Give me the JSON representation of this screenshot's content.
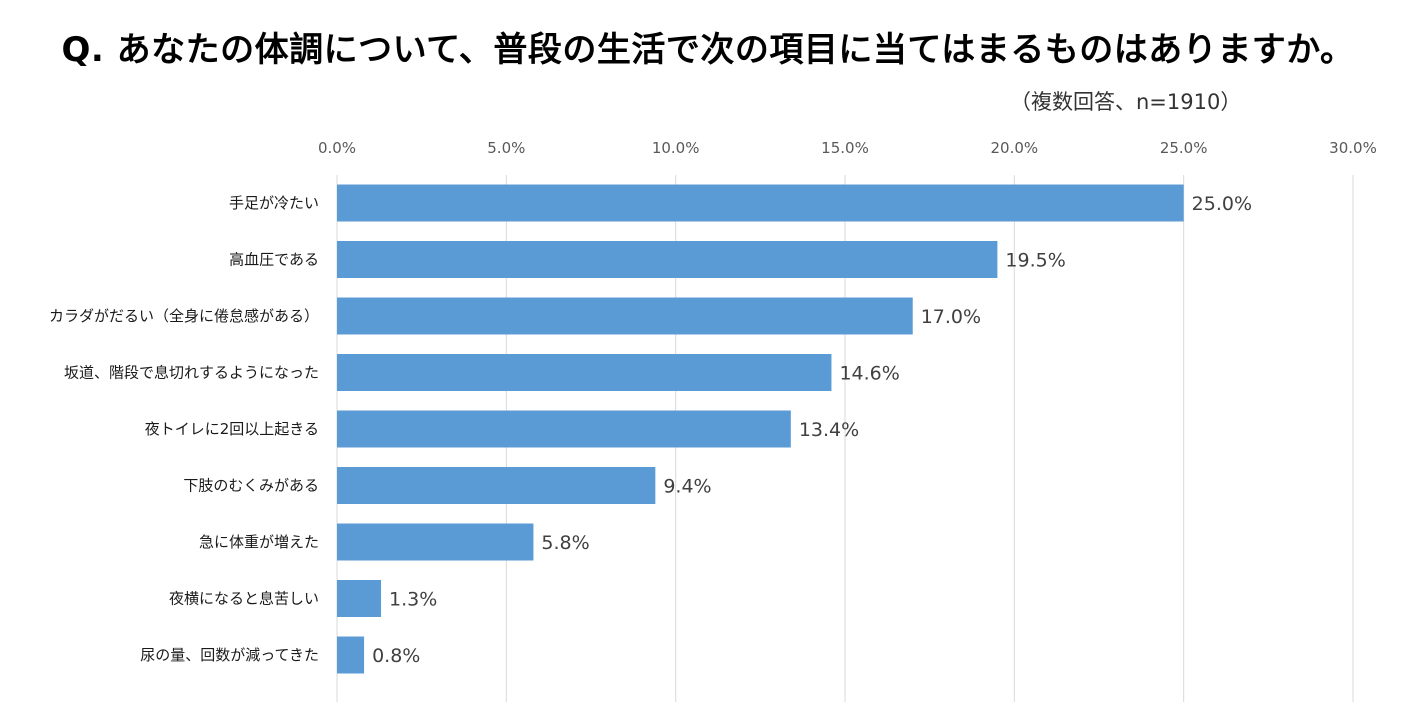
{
  "chart_data": {
    "type": "bar",
    "orientation": "horizontal",
    "title": "Q.  あなたの体調について、普段の生活で次の項目に当てはまるものはありますか。",
    "subtitle": "（複数回答、n=1910）",
    "categories": [
      "手足が冷たい",
      "高血圧である",
      "カラダがだるい（全身に倦怠感がある）",
      "坂道、階段で息切れするようになった",
      "夜トイレに2回以上起きる",
      "下肢のむくみがある",
      "急に体重が増えた",
      "夜横になると息苦しい",
      "尿の量、回数が減ってきた"
    ],
    "values": [
      25.0,
      19.5,
      17.0,
      14.6,
      13.4,
      9.4,
      5.8,
      1.3,
      0.8
    ],
    "value_labels": [
      "25.0%",
      "19.5%",
      "17.0%",
      "14.6%",
      "13.4%",
      "9.4%",
      "5.8%",
      "1.3%",
      "0.8%"
    ],
    "xlim": [
      0,
      30
    ],
    "x_ticks": [
      "0.0%",
      "5.0%",
      "10.0%",
      "15.0%",
      "20.0%",
      "25.0%",
      "30.0%"
    ],
    "axis_position": "top",
    "grid": true,
    "bar_color": "#5B9BD5",
    "grid_color": "#D9D9D9"
  }
}
